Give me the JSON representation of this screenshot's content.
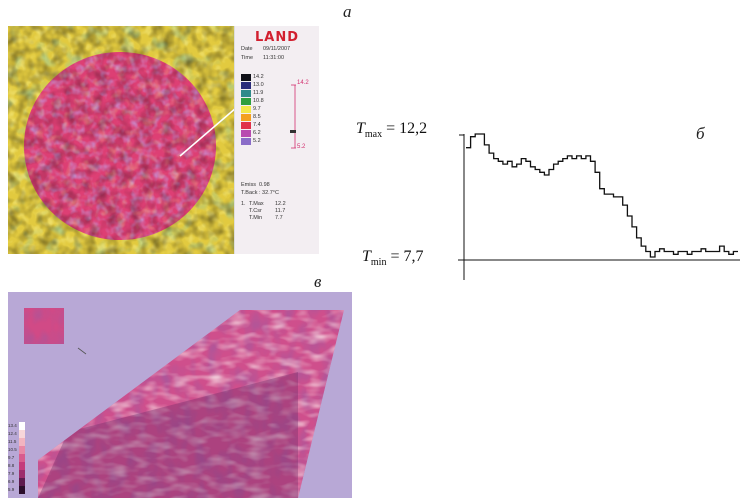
{
  "panel_labels": {
    "a": "а",
    "b": "б",
    "c": "в"
  },
  "camera_panel": {
    "logo": "LAND",
    "date_label": "Date",
    "date_value": "09/11/2007",
    "time_label": "Time",
    "time_value": "11:31:00",
    "scale": [
      "14.2",
      "13.0",
      "11.9",
      "10.8",
      "9.7",
      "8.5",
      "7.4",
      "6.2",
      "5.2"
    ],
    "scale_colors": [
      "#101018",
      "#2a2a7a",
      "#2f8a8a",
      "#2e9f3e",
      "#f2e84a",
      "#f3a020",
      "#e0304a",
      "#b84ab0",
      "#8a6cc8"
    ],
    "range_max": "14.2",
    "range_min": "5.2",
    "emiss_label": "Emiss",
    "emiss_value": "0.98",
    "tback_label": "T.Back",
    "tback_value": ": 32.7°C",
    "line_index": "1.",
    "tmax_label": "T.Max",
    "tmax_value": "12.2",
    "tcsr_label": "T.Csr",
    "tcsr_value": "11.7",
    "tmin_label": "T.Min",
    "tmin_value": "7.7"
  },
  "profile": {
    "tmax_text": "= 12,2",
    "tmin_text": "= 7,7",
    "t_letter": "T",
    "max_sub": "max",
    "min_sub": "min",
    "chart_data": {
      "type": "line",
      "ylim": [
        7.7,
        12.2
      ],
      "y": [
        11.7,
        12.1,
        12.2,
        12.2,
        11.8,
        11.5,
        11.3,
        11.2,
        11.1,
        11.2,
        11.0,
        11.1,
        11.3,
        11.2,
        11.0,
        10.9,
        10.8,
        10.7,
        10.9,
        11.1,
        11.2,
        11.3,
        11.4,
        11.3,
        11.4,
        11.3,
        11.4,
        11.2,
        10.8,
        10.2,
        10.0,
        10.0,
        9.9,
        9.9,
        9.6,
        9.2,
        8.8,
        8.4,
        8.1,
        7.9,
        7.7,
        7.9,
        8.0,
        7.9,
        7.9,
        7.8,
        7.9,
        7.9,
        7.8,
        7.9,
        7.9,
        8.0,
        7.9,
        7.9,
        7.9,
        8.1,
        7.9,
        7.8,
        7.9,
        7.9
      ]
    }
  },
  "histogram_panel": {
    "scale": [
      "13.4",
      "12.4",
      "11.5",
      "10.5",
      "9.7",
      "8.8",
      "7.9",
      "6.9",
      "5.9"
    ]
  }
}
